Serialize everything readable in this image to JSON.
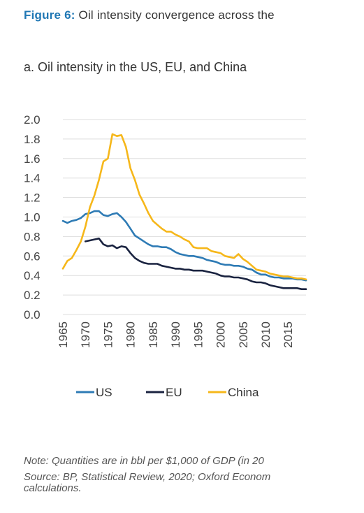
{
  "figure": {
    "number_label": "Figure 6:",
    "title": "Oil intensity convergence across the"
  },
  "panel_title": "a. Oil intensity in the US, EU, and China",
  "notes": {
    "line1": "Note: Quantities are in bbl per $1,000 of GDP (in 20",
    "line2": "Source: BP, Statistical Review, 2020; Oxford Econom",
    "line3": "calculations."
  },
  "chart_data": {
    "type": "line",
    "title": "",
    "xlabel": "",
    "ylabel": "",
    "xlim": [
      1965,
      2019
    ],
    "ylim": [
      0,
      2.0
    ],
    "grid": true,
    "legend_position": "bottom",
    "x_ticks": [
      "1965",
      "1970",
      "1975",
      "1980",
      "1985",
      "1990",
      "1995",
      "2000",
      "2005",
      "2010",
      "2015"
    ],
    "y_ticks": [
      "0.0",
      "0.2",
      "0.4",
      "0.6",
      "0.8",
      "1.0",
      "1.2",
      "1.4",
      "1.6",
      "1.8",
      "2.0"
    ],
    "series": [
      {
        "name": "US",
        "color": "#2e7bb5",
        "x": [
          1965,
          1966,
          1967,
          1968,
          1969,
          1970,
          1971,
          1972,
          1973,
          1974,
          1975,
          1976,
          1977,
          1978,
          1979,
          1980,
          1981,
          1982,
          1983,
          1984,
          1985,
          1986,
          1987,
          1988,
          1989,
          1990,
          1991,
          1992,
          1993,
          1994,
          1995,
          1996,
          1997,
          1998,
          1999,
          2000,
          2001,
          2002,
          2003,
          2004,
          2005,
          2006,
          2007,
          2008,
          2009,
          2010,
          2011,
          2012,
          2013,
          2014,
          2015,
          2016,
          2017,
          2018,
          2019
        ],
        "values": [
          0.96,
          0.94,
          0.96,
          0.97,
          0.99,
          1.03,
          1.04,
          1.06,
          1.06,
          1.02,
          1.01,
          1.03,
          1.04,
          1.0,
          0.95,
          0.88,
          0.81,
          0.78,
          0.75,
          0.72,
          0.7,
          0.7,
          0.69,
          0.69,
          0.67,
          0.64,
          0.62,
          0.61,
          0.6,
          0.6,
          0.59,
          0.58,
          0.56,
          0.55,
          0.54,
          0.52,
          0.51,
          0.51,
          0.5,
          0.5,
          0.49,
          0.47,
          0.46,
          0.43,
          0.41,
          0.41,
          0.39,
          0.38,
          0.38,
          0.37,
          0.37,
          0.37,
          0.36,
          0.36,
          0.35
        ]
      },
      {
        "name": "EU",
        "color": "#1a2340",
        "x": [
          1970,
          1971,
          1972,
          1973,
          1974,
          1975,
          1976,
          1977,
          1978,
          1979,
          1980,
          1981,
          1982,
          1983,
          1984,
          1985,
          1986,
          1987,
          1988,
          1989,
          1990,
          1991,
          1992,
          1993,
          1994,
          1995,
          1996,
          1997,
          1998,
          1999,
          2000,
          2001,
          2002,
          2003,
          2004,
          2005,
          2006,
          2007,
          2008,
          2009,
          2010,
          2011,
          2012,
          2013,
          2014,
          2015,
          2016,
          2017,
          2018,
          2019
        ],
        "values": [
          0.75,
          0.76,
          0.77,
          0.78,
          0.72,
          0.7,
          0.71,
          0.68,
          0.7,
          0.69,
          0.63,
          0.58,
          0.55,
          0.53,
          0.52,
          0.52,
          0.52,
          0.5,
          0.49,
          0.48,
          0.47,
          0.47,
          0.46,
          0.46,
          0.45,
          0.45,
          0.45,
          0.44,
          0.43,
          0.42,
          0.4,
          0.39,
          0.39,
          0.38,
          0.38,
          0.37,
          0.36,
          0.34,
          0.33,
          0.33,
          0.32,
          0.3,
          0.29,
          0.28,
          0.27,
          0.27,
          0.27,
          0.27,
          0.26,
          0.26
        ]
      },
      {
        "name": "China",
        "color": "#f6b71a",
        "x": [
          1965,
          1966,
          1967,
          1968,
          1969,
          1970,
          1971,
          1972,
          1973,
          1974,
          1975,
          1976,
          1977,
          1978,
          1979,
          1980,
          1981,
          1982,
          1983,
          1984,
          1985,
          1986,
          1987,
          1988,
          1989,
          1990,
          1991,
          1992,
          1993,
          1994,
          1995,
          1996,
          1997,
          1998,
          1999,
          2000,
          2001,
          2002,
          2003,
          2004,
          2005,
          2006,
          2007,
          2008,
          2009,
          2010,
          2011,
          2012,
          2013,
          2014,
          2015,
          2016,
          2017,
          2018,
          2019
        ],
        "values": [
          0.47,
          0.55,
          0.58,
          0.66,
          0.75,
          0.9,
          1.1,
          1.22,
          1.38,
          1.57,
          1.6,
          1.85,
          1.83,
          1.84,
          1.72,
          1.5,
          1.38,
          1.23,
          1.14,
          1.04,
          0.96,
          0.92,
          0.88,
          0.85,
          0.85,
          0.82,
          0.8,
          0.77,
          0.75,
          0.69,
          0.68,
          0.68,
          0.68,
          0.65,
          0.64,
          0.63,
          0.6,
          0.59,
          0.58,
          0.62,
          0.57,
          0.54,
          0.5,
          0.46,
          0.45,
          0.44,
          0.42,
          0.41,
          0.4,
          0.39,
          0.39,
          0.38,
          0.37,
          0.37,
          0.36
        ]
      }
    ]
  }
}
